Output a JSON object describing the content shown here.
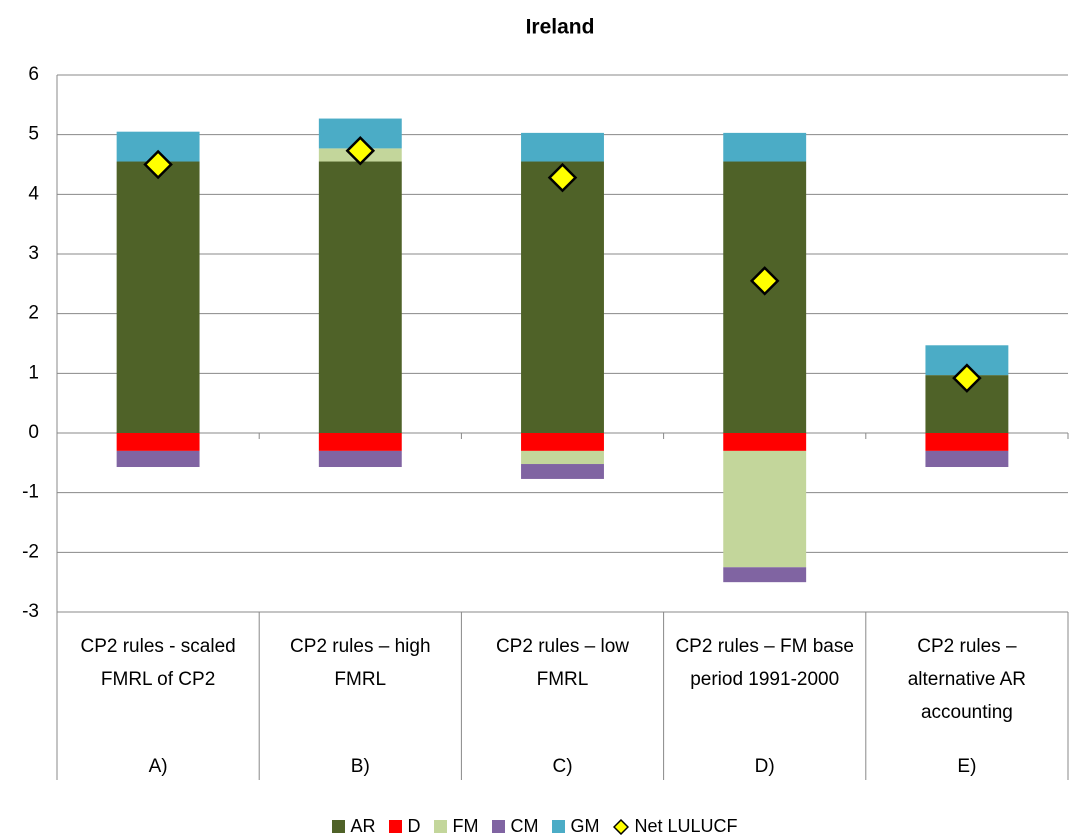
{
  "chart_data": {
    "type": "bar",
    "stacked": true,
    "title": "Ireland",
    "categories": [
      "A)",
      "B)",
      "C)",
      "D)",
      "E)"
    ],
    "category_descriptions": [
      "CP2 rules - scaled FMRL of CP2",
      "CP2 rules – high FMRL",
      "CP2 rules – low FMRL",
      "CP2 rules – FM base period 1991-2000",
      "CP2 rules – alternative AR accounting"
    ],
    "series": [
      {
        "name": "AR",
        "color": "#4f6228",
        "values": [
          4.55,
          4.55,
          4.55,
          4.55,
          0.97
        ]
      },
      {
        "name": "D",
        "color": "#ff0000",
        "values": [
          -0.3,
          -0.3,
          -0.3,
          -0.3,
          -0.3
        ]
      },
      {
        "name": "FM",
        "color": "#c3d69b",
        "values": [
          0,
          0.22,
          -0.22,
          -1.95,
          0
        ]
      },
      {
        "name": "CM",
        "color": "#8064a2",
        "values": [
          -0.27,
          -0.27,
          -0.25,
          -0.25,
          -0.27
        ]
      },
      {
        "name": "GM",
        "color": "#4bacc6",
        "values": [
          0.5,
          0.5,
          0.48,
          0.48,
          0.5
        ]
      },
      {
        "name": "Net LULUCF",
        "type": "marker",
        "marker": "diamond",
        "color": "#ffff00",
        "values": [
          4.5,
          4.73,
          4.28,
          2.55,
          0.92
        ]
      }
    ],
    "ylim": [
      -3,
      6
    ],
    "yticks": [
      -3,
      -2,
      -1,
      0,
      1,
      2,
      3,
      4,
      5,
      6
    ],
    "grid": true,
    "legend": "bottom"
  }
}
